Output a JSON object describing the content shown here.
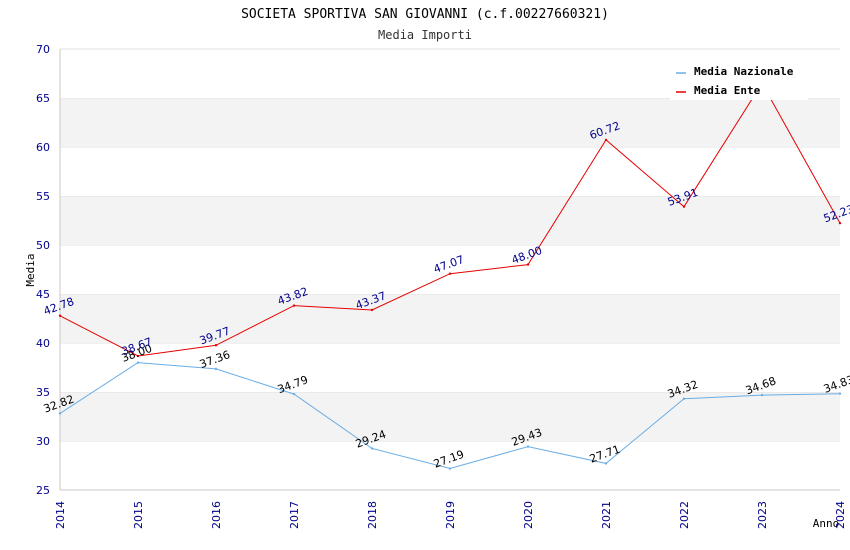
{
  "chart_data": {
    "type": "line",
    "title": "SOCIETA SPORTIVA SAN GIOVANNI (c.f.00227660321)",
    "subtitle": "Media Importi",
    "xlabel": "Anno",
    "ylabel": "Media",
    "x": [
      "2014",
      "2015",
      "2016",
      "2017",
      "2018",
      "2019",
      "2020",
      "2021",
      "2022",
      "2023",
      "2024"
    ],
    "yticks": [
      "25",
      "30",
      "35",
      "40",
      "45",
      "50",
      "55",
      "60",
      "65",
      "70"
    ],
    "ylim": [
      25,
      70
    ],
    "grid": true,
    "legend_position": "top-right",
    "series": [
      {
        "name": "Media Nazionale",
        "color": "#6aaee6",
        "label_color": "#000000",
        "values": [
          32.82,
          38.0,
          37.36,
          34.79,
          29.24,
          27.19,
          29.43,
          27.71,
          34.32,
          34.68,
          34.83
        ],
        "labels": [
          "32.82",
          "38.00",
          "37.36",
          "34.79",
          "29.24",
          "27.19",
          "29.43",
          "27.71",
          "34.32",
          "34.68",
          "34.83"
        ]
      },
      {
        "name": "Media Ente",
        "color": "#e60000",
        "label_color": "#00008b",
        "values": [
          42.78,
          38.67,
          39.77,
          43.82,
          43.37,
          47.07,
          48.0,
          60.72,
          53.91,
          66.5,
          52.23
        ],
        "labels": [
          "42.78",
          "38.67",
          "39.77",
          "43.82",
          "43.37",
          "47.07",
          "48.00",
          "60.72",
          "53.91",
          "",
          "52.23"
        ]
      }
    ]
  }
}
